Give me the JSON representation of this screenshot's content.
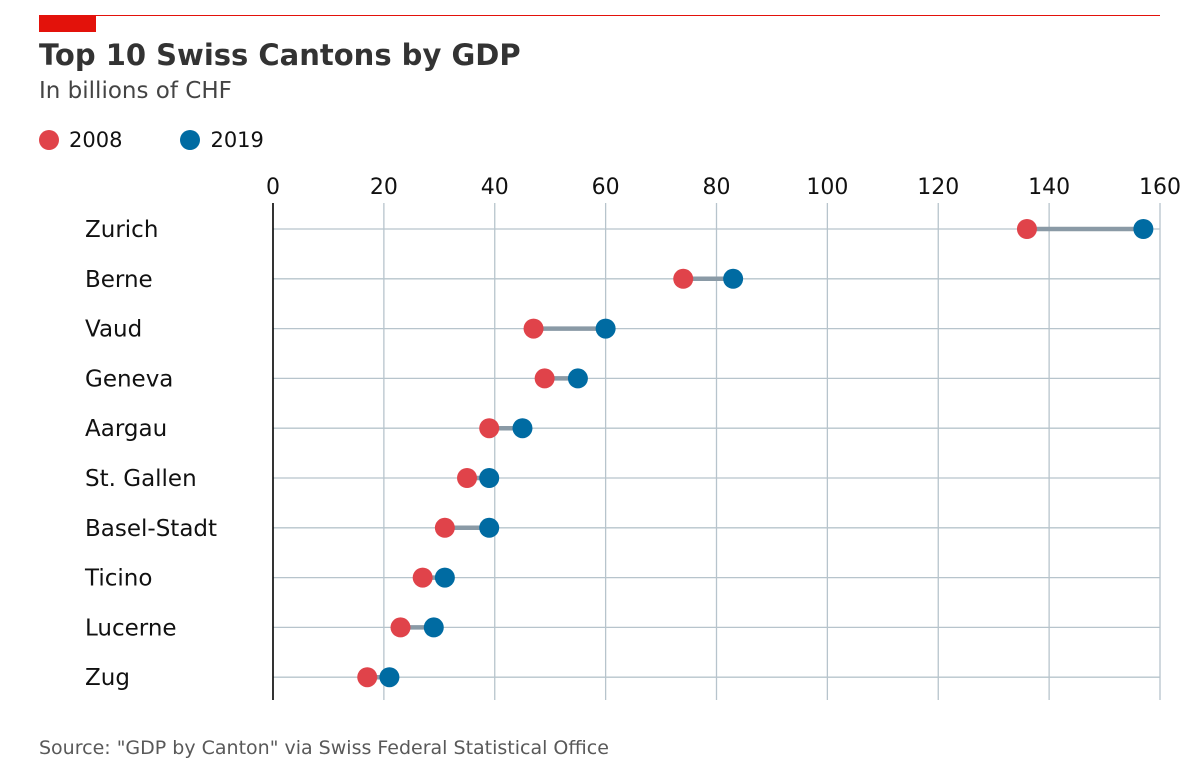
{
  "header": {
    "title": "Top 10 Swiss Cantons by GDP",
    "subtitle": "In billions of CHF"
  },
  "legend": [
    {
      "label": "2008",
      "color": "#e0434a"
    },
    {
      "label": "2019",
      "color": "#006ba2"
    }
  ],
  "footer": {
    "source": "Source: \"GDP by Canton\" via Swiss Federal Statistical Office"
  },
  "colors": {
    "accent": "#e3120b",
    "grid": "#b7c4cc",
    "connector": "#8a9aa6",
    "axis": "#000000"
  },
  "chart_data": {
    "type": "dumbbell",
    "title": "Top 10 Swiss Cantons by GDP",
    "subtitle": "In billions of CHF",
    "categories": [
      "Zurich",
      "Berne",
      "Vaud",
      "Geneva",
      "Aargau",
      "St. Gallen",
      "Basel-Stadt",
      "Ticino",
      "Lucerne",
      "Zug"
    ],
    "series": [
      {
        "name": "2008",
        "color": "#e0434a",
        "values": [
          136,
          74,
          47,
          49,
          39,
          35,
          31,
          27,
          23,
          17
        ]
      },
      {
        "name": "2019",
        "color": "#006ba2",
        "values": [
          157,
          83,
          60,
          55,
          45,
          39,
          39,
          31,
          29,
          21
        ]
      }
    ],
    "xlim": [
      0,
      160
    ],
    "xticks": [
      0,
      20,
      40,
      60,
      80,
      100,
      120,
      140,
      160
    ],
    "grid": true,
    "legend_position": "top-left"
  }
}
